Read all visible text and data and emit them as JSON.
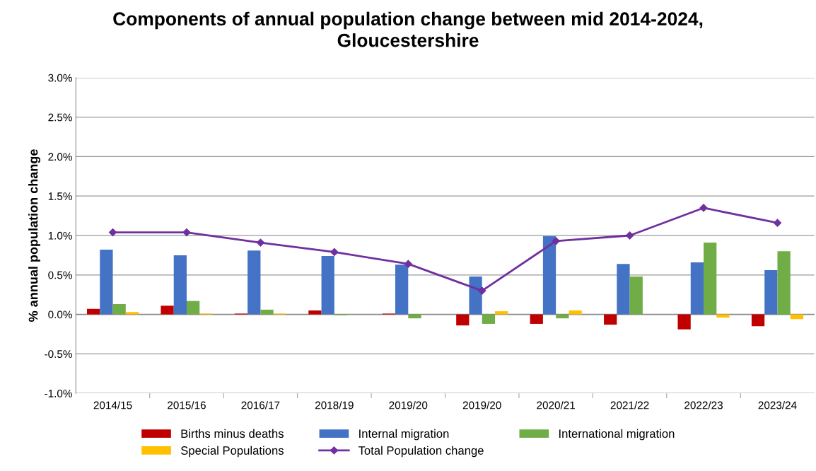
{
  "chart_data": {
    "type": "bar",
    "title": "Components of annual population change between mid 2014-2024,\nGloucestershire",
    "ylabel": "% annual population change",
    "categories": [
      "2014/15",
      "2015/16",
      "2016/17",
      "2018/19",
      "2019/20",
      "2019/20",
      "2020/21",
      "2021/22",
      "2022/23",
      "2023/24"
    ],
    "series": [
      {
        "name": "Births minus deaths",
        "color": "#c00000",
        "values": [
          0.07,
          0.11,
          0.01,
          0.05,
          0.01,
          -0.14,
          -0.12,
          -0.13,
          -0.19,
          -0.15
        ]
      },
      {
        "name": "Internal migration",
        "color": "#4472c4",
        "values": [
          0.82,
          0.75,
          0.81,
          0.74,
          0.63,
          0.48,
          0.99,
          0.64,
          0.66,
          0.56
        ]
      },
      {
        "name": "International migration",
        "color": "#70ad47",
        "values": [
          0.13,
          0.17,
          0.06,
          -0.01,
          -0.05,
          -0.12,
          -0.05,
          0.48,
          0.91,
          0.8
        ]
      },
      {
        "name": "Special Populations",
        "color": "#ffc000",
        "values": [
          0.03,
          0.01,
          0.01,
          0.0,
          0.0,
          0.04,
          0.05,
          0.0,
          -0.04,
          -0.06
        ]
      },
      {
        "name": "Total Population change",
        "type": "line",
        "color": "#7030a0",
        "marker": "diamond",
        "values": [
          1.04,
          1.04,
          0.91,
          0.79,
          0.64,
          0.3,
          0.93,
          1.0,
          1.35,
          1.16
        ]
      }
    ],
    "ylim": [
      -1.0,
      3.0
    ],
    "yticks": [
      {
        "value": -1.0,
        "label": "-1.0%"
      },
      {
        "value": -0.5,
        "label": "-0.5%"
      },
      {
        "value": 0.0,
        "label": "0.0%"
      },
      {
        "value": 0.5,
        "label": "0.5%"
      },
      {
        "value": 1.0,
        "label": "1.0%"
      },
      {
        "value": 1.5,
        "label": "1.5%"
      },
      {
        "value": 2.0,
        "label": "2.0%"
      },
      {
        "value": 2.5,
        "label": "2.5%"
      },
      {
        "value": 3.0,
        "label": "3.0%"
      }
    ],
    "grid": "y",
    "legend": "bottom"
  }
}
